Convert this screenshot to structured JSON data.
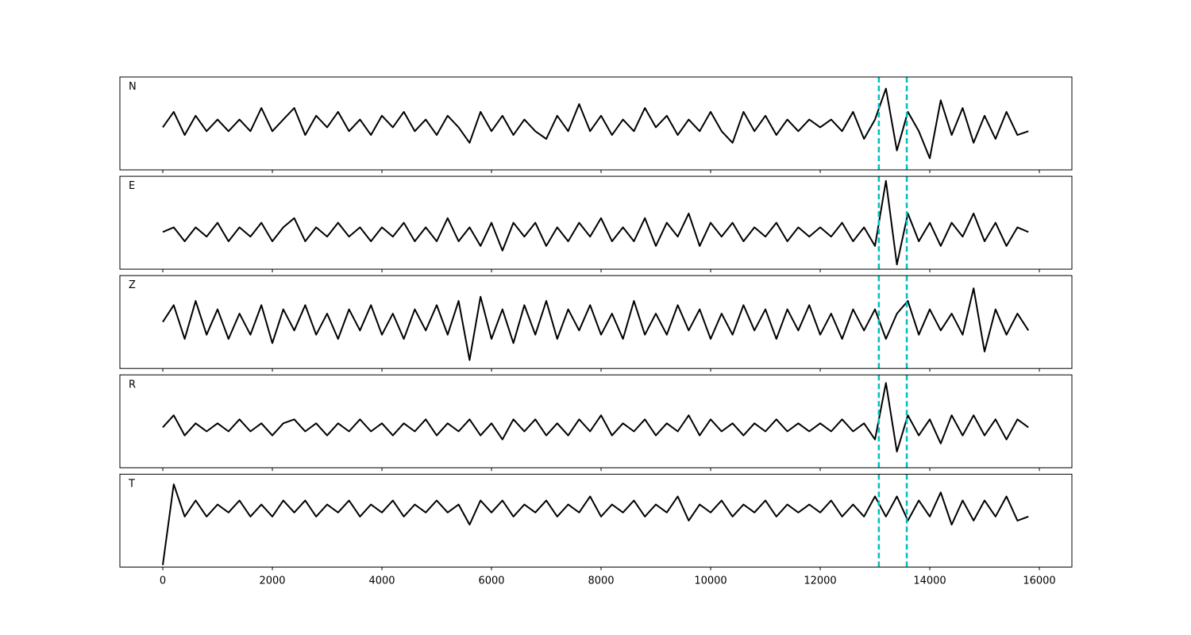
{
  "chart_data": [
    {
      "type": "line",
      "label": "N",
      "color": "#000000",
      "vline_color": "#00bfbf",
      "vlines": [
        13070,
        13580
      ],
      "xlim": [
        -783,
        16594
      ],
      "ylim": [
        -1.2,
        1.2
      ],
      "xticks": [
        0,
        2000,
        4000,
        6000,
        8000,
        10000,
        12000,
        14000,
        16000
      ],
      "x": [
        0,
        200,
        400,
        600,
        800,
        1000,
        1200,
        1400,
        1600,
        1800,
        2000,
        2200,
        2400,
        2600,
        2800,
        3000,
        3200,
        3400,
        3600,
        3800,
        4000,
        4200,
        4400,
        4600,
        4800,
        5000,
        5200,
        5400,
        5600,
        5800,
        6000,
        6200,
        6400,
        6600,
        6800,
        7000,
        7200,
        7400,
        7600,
        7800,
        8000,
        8200,
        8400,
        8600,
        8800,
        9000,
        9200,
        9400,
        9600,
        9800,
        10000,
        10200,
        10400,
        10600,
        10800,
        11000,
        11200,
        11400,
        11600,
        11800,
        12000,
        12200,
        12400,
        12600,
        12800,
        13000,
        13200,
        13400,
        13600,
        13800,
        14000,
        14200,
        14400,
        14600,
        14800,
        15000,
        15200,
        15400,
        15600,
        15800
      ],
      "values": [
        -0.1,
        0.3,
        -0.3,
        0.2,
        -0.2,
        0.1,
        -0.2,
        0.1,
        -0.2,
        0.4,
        -0.2,
        0.1,
        0.4,
        -0.3,
        0.2,
        -0.1,
        0.3,
        -0.2,
        0.1,
        -0.3,
        0.2,
        -0.1,
        0.3,
        -0.2,
        0.1,
        -0.3,
        0.2,
        -0.1,
        -0.5,
        0.3,
        -0.2,
        0.2,
        -0.3,
        0.1,
        -0.2,
        -0.4,
        0.2,
        -0.2,
        0.5,
        -0.2,
        0.2,
        -0.3,
        0.1,
        -0.2,
        0.4,
        -0.1,
        0.2,
        -0.3,
        0.1,
        -0.2,
        0.3,
        -0.2,
        -0.5,
        0.3,
        -0.2,
        0.2,
        -0.3,
        0.1,
        -0.2,
        0.1,
        -0.1,
        0.1,
        -0.2,
        0.3,
        -0.4,
        0.1,
        0.9,
        -0.7,
        0.3,
        -0.2,
        -0.9,
        0.6,
        -0.3,
        0.4,
        -0.5,
        0.2,
        -0.4,
        0.3,
        -0.3,
        -0.2
      ]
    },
    {
      "type": "line",
      "label": "E",
      "color": "#000000",
      "vline_color": "#00bfbf",
      "vlines": [
        13070,
        13580
      ],
      "xlim": [
        -783,
        16594
      ],
      "ylim": [
        -0.8,
        1.2
      ],
      "xticks": [
        0,
        2000,
        4000,
        6000,
        8000,
        10000,
        12000,
        14000,
        16000
      ],
      "x": [
        0,
        200,
        400,
        600,
        800,
        1000,
        1200,
        1400,
        1600,
        1800,
        2000,
        2200,
        2400,
        2600,
        2800,
        3000,
        3200,
        3400,
        3600,
        3800,
        4000,
        4200,
        4400,
        4600,
        4800,
        5000,
        5200,
        5400,
        5600,
        5800,
        6000,
        6200,
        6400,
        6600,
        6800,
        7000,
        7200,
        7400,
        7600,
        7800,
        8000,
        8200,
        8400,
        8600,
        8800,
        9000,
        9200,
        9400,
        9600,
        9800,
        10000,
        10200,
        10400,
        10600,
        10800,
        11000,
        11200,
        11400,
        11600,
        11800,
        12000,
        12200,
        12400,
        12600,
        12800,
        13000,
        13200,
        13400,
        13600,
        13800,
        14000,
        14200,
        14400,
        14600,
        14800,
        15000,
        15200,
        15400,
        15600,
        15800
      ],
      "values": [
        0.0,
        0.1,
        -0.2,
        0.1,
        -0.1,
        0.2,
        -0.2,
        0.1,
        -0.1,
        0.2,
        -0.2,
        0.1,
        0.3,
        -0.2,
        0.1,
        -0.1,
        0.2,
        -0.1,
        0.1,
        -0.2,
        0.1,
        -0.1,
        0.2,
        -0.2,
        0.1,
        -0.2,
        0.3,
        -0.2,
        0.1,
        -0.3,
        0.2,
        -0.4,
        0.2,
        -0.1,
        0.2,
        -0.3,
        0.1,
        -0.2,
        0.2,
        -0.1,
        0.3,
        -0.2,
        0.1,
        -0.2,
        0.3,
        -0.3,
        0.2,
        -0.1,
        0.4,
        -0.3,
        0.2,
        -0.1,
        0.2,
        -0.2,
        0.1,
        -0.1,
        0.2,
        -0.2,
        0.1,
        -0.1,
        0.1,
        -0.1,
        0.2,
        -0.2,
        0.1,
        -0.3,
        1.1,
        -0.7,
        0.4,
        -0.2,
        0.2,
        -0.3,
        0.2,
        -0.1,
        0.4,
        -0.2,
        0.2,
        -0.3,
        0.1,
        0.0
      ]
    },
    {
      "type": "line",
      "label": "Z",
      "color": "#000000",
      "vline_color": "#00bfbf",
      "vlines": [
        13070,
        13580
      ],
      "xlim": [
        -783,
        16594
      ],
      "ylim": [
        -1.1,
        1.1
      ],
      "xticks": [
        0,
        2000,
        4000,
        6000,
        8000,
        10000,
        12000,
        14000,
        16000
      ],
      "x": [
        0,
        200,
        400,
        600,
        800,
        1000,
        1200,
        1400,
        1600,
        1800,
        2000,
        2200,
        2400,
        2600,
        2800,
        3000,
        3200,
        3400,
        3600,
        3800,
        4000,
        4200,
        4400,
        4600,
        4800,
        5000,
        5200,
        5400,
        5600,
        5800,
        6000,
        6200,
        6400,
        6600,
        6800,
        7000,
        7200,
        7400,
        7600,
        7800,
        8000,
        8200,
        8400,
        8600,
        8800,
        9000,
        9200,
        9400,
        9600,
        9800,
        10000,
        10200,
        10400,
        10600,
        10800,
        11000,
        11200,
        11400,
        11600,
        11800,
        12000,
        12200,
        12400,
        12600,
        12800,
        13000,
        13200,
        13400,
        13600,
        13800,
        14000,
        14200,
        14400,
        14600,
        14800,
        15000,
        15200,
        15400,
        15600,
        15800
      ],
      "values": [
        0.0,
        0.4,
        -0.4,
        0.5,
        -0.3,
        0.3,
        -0.4,
        0.2,
        -0.3,
        0.4,
        -0.5,
        0.3,
        -0.2,
        0.4,
        -0.3,
        0.2,
        -0.4,
        0.3,
        -0.2,
        0.4,
        -0.3,
        0.2,
        -0.4,
        0.3,
        -0.2,
        0.4,
        -0.3,
        0.5,
        -0.9,
        0.6,
        -0.4,
        0.3,
        -0.5,
        0.4,
        -0.3,
        0.5,
        -0.4,
        0.3,
        -0.2,
        0.4,
        -0.3,
        0.2,
        -0.4,
        0.5,
        -0.3,
        0.2,
        -0.3,
        0.4,
        -0.2,
        0.3,
        -0.4,
        0.2,
        -0.3,
        0.4,
        -0.2,
        0.3,
        -0.4,
        0.3,
        -0.2,
        0.4,
        -0.3,
        0.2,
        -0.4,
        0.3,
        -0.2,
        0.3,
        -0.4,
        0.2,
        0.5,
        -0.3,
        0.3,
        -0.2,
        0.2,
        -0.3,
        0.8,
        -0.7,
        0.3,
        -0.3,
        0.2,
        -0.2
      ]
    },
    {
      "type": "line",
      "label": "R",
      "color": "#000000",
      "vline_color": "#00bfbf",
      "vlines": [
        13070,
        13580
      ],
      "xlim": [
        -783,
        16594
      ],
      "ylim": [
        -1.0,
        1.3
      ],
      "xticks": [
        0,
        2000,
        4000,
        6000,
        8000,
        10000,
        12000,
        14000,
        16000
      ],
      "x": [
        0,
        200,
        400,
        600,
        800,
        1000,
        1200,
        1400,
        1600,
        1800,
        2000,
        2200,
        2400,
        2600,
        2800,
        3000,
        3200,
        3400,
        3600,
        3800,
        4000,
        4200,
        4400,
        4600,
        4800,
        5000,
        5200,
        5400,
        5600,
        5800,
        6000,
        6200,
        6400,
        6600,
        6800,
        7000,
        7200,
        7400,
        7600,
        7800,
        8000,
        8200,
        8400,
        8600,
        8800,
        9000,
        9200,
        9400,
        9600,
        9800,
        10000,
        10200,
        10400,
        10600,
        10800,
        11000,
        11200,
        11400,
        11600,
        11800,
        12000,
        12200,
        12400,
        12600,
        12800,
        13000,
        13200,
        13400,
        13600,
        13800,
        14000,
        14200,
        14400,
        14600,
        14800,
        15000,
        15200,
        15400,
        15600,
        15800
      ],
      "values": [
        0.0,
        0.3,
        -0.2,
        0.1,
        -0.1,
        0.1,
        -0.1,
        0.2,
        -0.1,
        0.1,
        -0.2,
        0.1,
        0.2,
        -0.1,
        0.1,
        -0.2,
        0.1,
        -0.1,
        0.2,
        -0.1,
        0.1,
        -0.2,
        0.1,
        -0.1,
        0.2,
        -0.2,
        0.1,
        -0.1,
        0.2,
        -0.2,
        0.1,
        -0.3,
        0.2,
        -0.1,
        0.2,
        -0.2,
        0.1,
        -0.2,
        0.2,
        -0.1,
        0.3,
        -0.2,
        0.1,
        -0.1,
        0.2,
        -0.2,
        0.1,
        -0.1,
        0.3,
        -0.2,
        0.2,
        -0.1,
        0.1,
        -0.2,
        0.1,
        -0.1,
        0.2,
        -0.1,
        0.1,
        -0.1,
        0.1,
        -0.1,
        0.2,
        -0.1,
        0.1,
        -0.3,
        1.1,
        -0.6,
        0.3,
        -0.2,
        0.2,
        -0.4,
        0.3,
        -0.2,
        0.3,
        -0.2,
        0.2,
        -0.3,
        0.2,
        0.0
      ]
    },
    {
      "type": "line",
      "label": "T",
      "color": "#000000",
      "vline_color": "#00bfbf",
      "vlines": [
        13070,
        13580
      ],
      "xlim": [
        -783,
        16594
      ],
      "ylim": [
        -1.45,
        0.85
      ],
      "xticks": [
        0,
        2000,
        4000,
        6000,
        8000,
        10000,
        12000,
        14000,
        16000
      ],
      "x": [
        0,
        200,
        400,
        600,
        800,
        1000,
        1200,
        1400,
        1600,
        1800,
        2000,
        2200,
        2400,
        2600,
        2800,
        3000,
        3200,
        3400,
        3600,
        3800,
        4000,
        4200,
        4400,
        4600,
        4800,
        5000,
        5200,
        5400,
        5600,
        5800,
        6000,
        6200,
        6400,
        6600,
        6800,
        7000,
        7200,
        7400,
        7600,
        7800,
        8000,
        8200,
        8400,
        8600,
        8800,
        9000,
        9200,
        9400,
        9600,
        9800,
        10000,
        10200,
        10400,
        10600,
        10800,
        11000,
        11200,
        11400,
        11600,
        11800,
        12000,
        12200,
        12400,
        12600,
        12800,
        13000,
        13200,
        13400,
        13600,
        13800,
        14000,
        14200,
        14400,
        14600,
        14800,
        15000,
        15200,
        15400,
        15600,
        15800
      ],
      "values": [
        -1.4,
        0.6,
        -0.2,
        0.2,
        -0.2,
        0.1,
        -0.1,
        0.2,
        -0.2,
        0.1,
        -0.2,
        0.2,
        -0.1,
        0.2,
        -0.2,
        0.1,
        -0.1,
        0.2,
        -0.2,
        0.1,
        -0.1,
        0.2,
        -0.2,
        0.1,
        -0.1,
        0.2,
        -0.1,
        0.1,
        -0.4,
        0.2,
        -0.1,
        0.2,
        -0.2,
        0.1,
        -0.1,
        0.2,
        -0.2,
        0.1,
        -0.1,
        0.3,
        -0.2,
        0.1,
        -0.1,
        0.2,
        -0.2,
        0.1,
        -0.1,
        0.3,
        -0.3,
        0.1,
        -0.1,
        0.2,
        -0.2,
        0.1,
        -0.1,
        0.2,
        -0.2,
        0.1,
        -0.1,
        0.1,
        -0.1,
        0.2,
        -0.2,
        0.1,
        -0.2,
        0.3,
        -0.2,
        0.3,
        -0.3,
        0.2,
        -0.2,
        0.4,
        -0.4,
        0.2,
        -0.3,
        0.2,
        -0.2,
        0.3,
        -0.3,
        -0.2
      ]
    }
  ]
}
